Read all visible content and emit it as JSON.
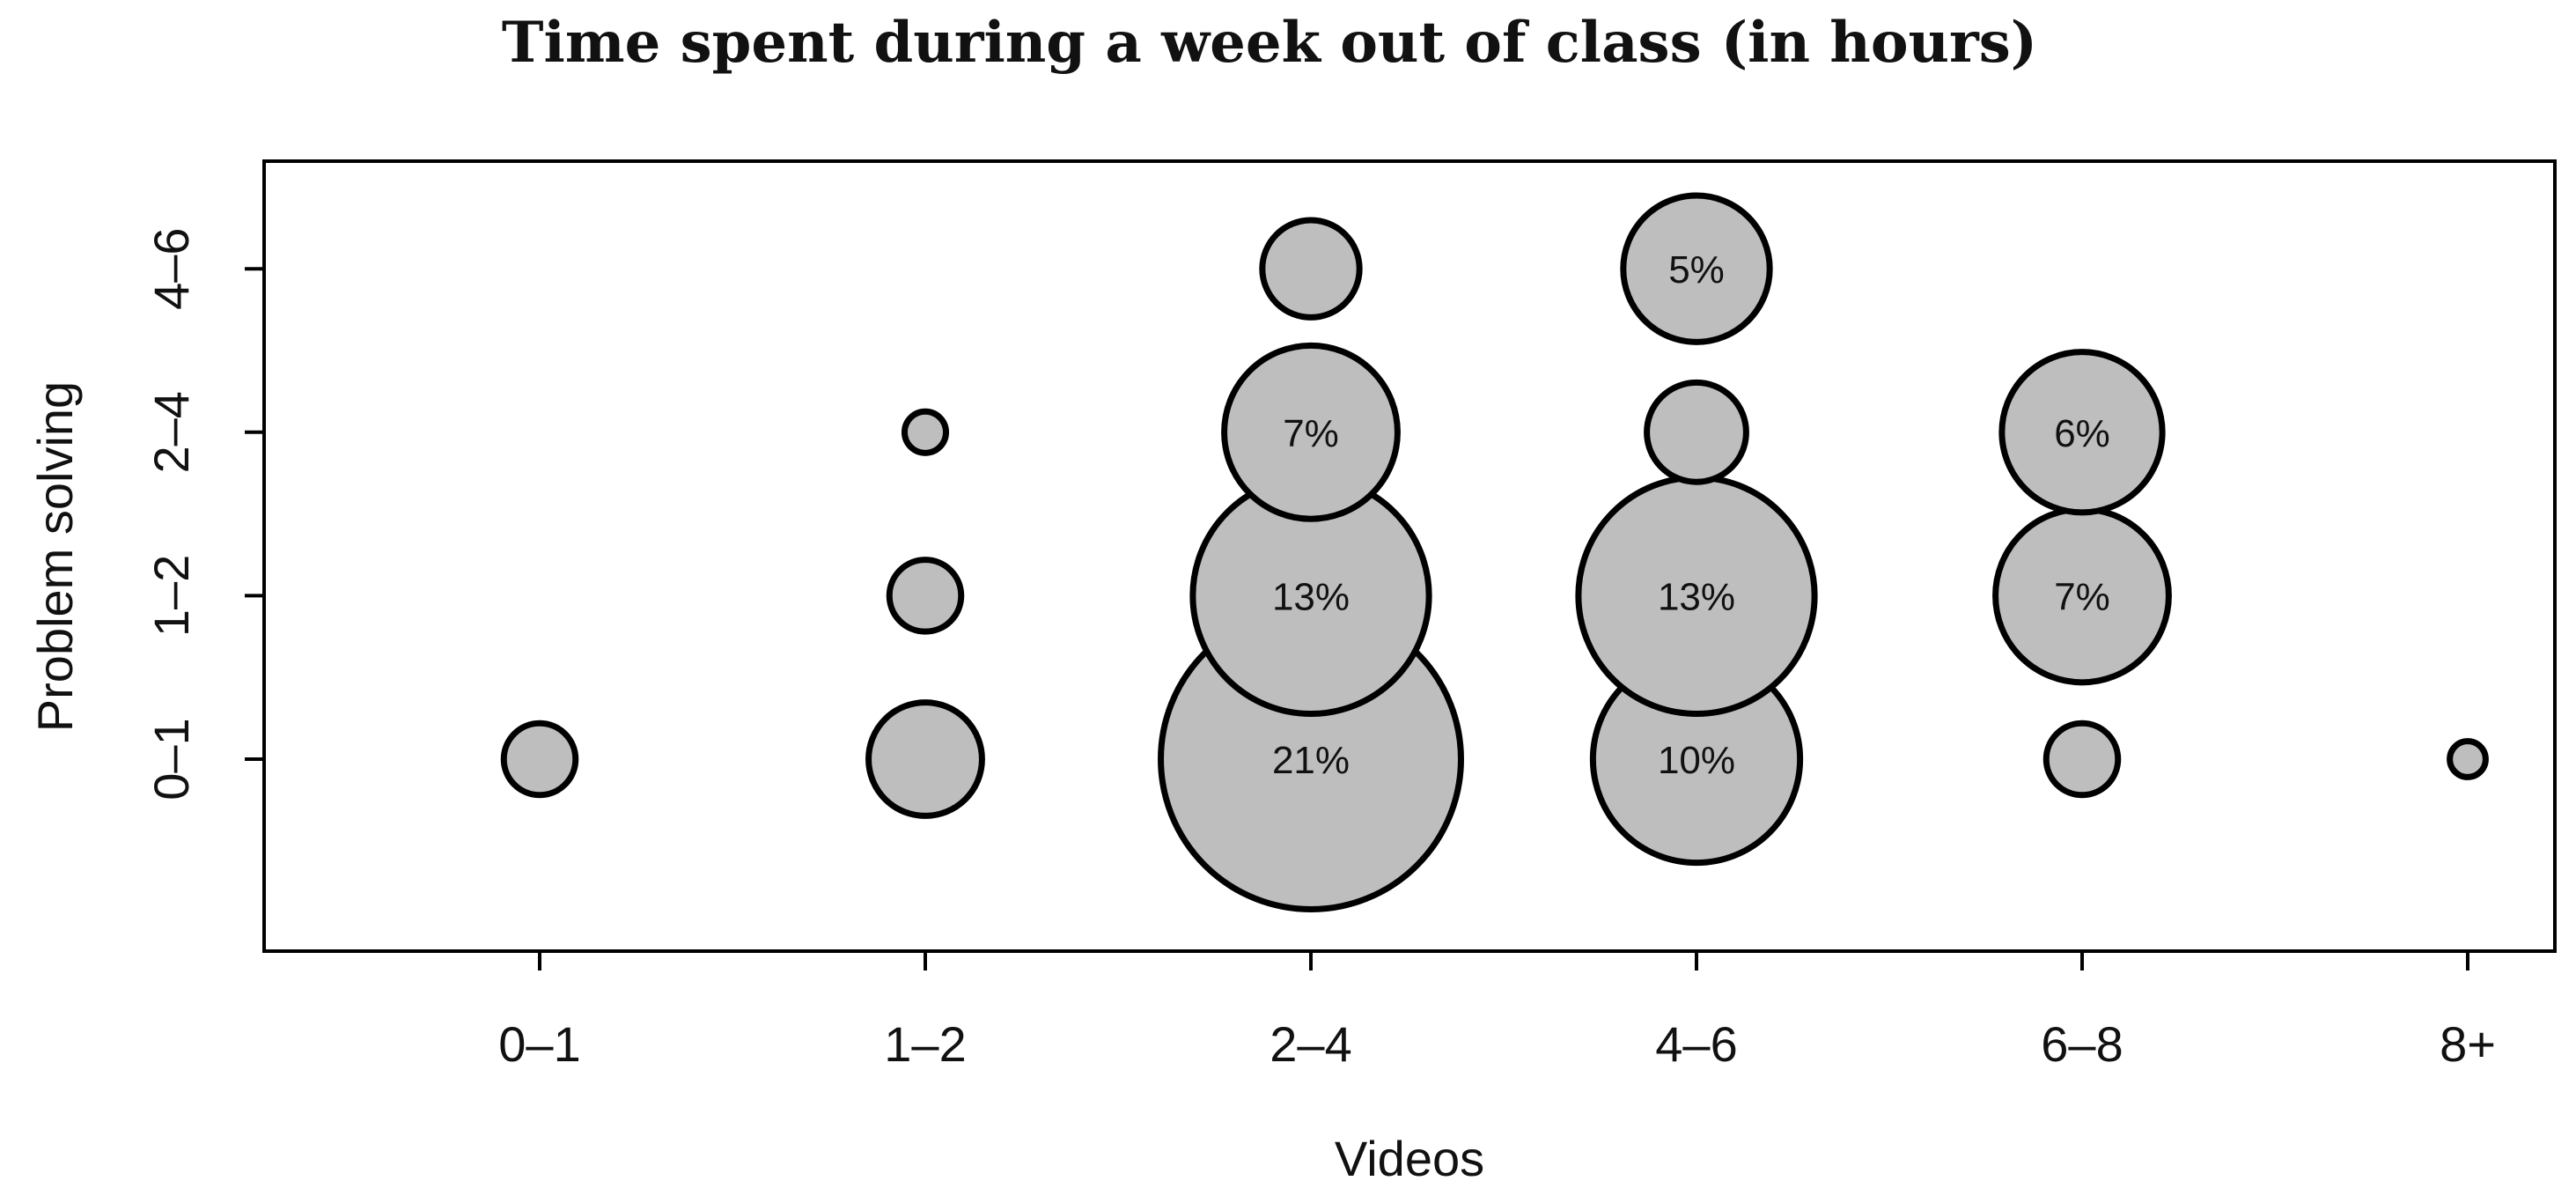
{
  "chart_data": {
    "type": "scatter",
    "title": "Time spent during a week out of class (in hours)",
    "xlabel": "Videos",
    "ylabel": "Problem solving",
    "x_categories": [
      "0–1",
      "1–2",
      "2–4",
      "4–6",
      "6–8",
      "8+"
    ],
    "y_categories": [
      "0–1",
      "1–2",
      "2–4",
      "4–6"
    ],
    "grid": false,
    "bubble_color": "#bebebe",
    "points": [
      {
        "x": "0–1",
        "y": "0–1",
        "percent": 1.2,
        "label": ""
      },
      {
        "x": "1–2",
        "y": "0–1",
        "percent": 3,
        "label": ""
      },
      {
        "x": "1–2",
        "y": "1–2",
        "percent": 1.2,
        "label": ""
      },
      {
        "x": "1–2",
        "y": "2–4",
        "percent": 0.4,
        "label": ""
      },
      {
        "x": "2–4",
        "y": "0–1",
        "percent": 21,
        "label": "21%"
      },
      {
        "x": "2–4",
        "y": "1–2",
        "percent": 13,
        "label": "13%"
      },
      {
        "x": "2–4",
        "y": "2–4",
        "percent": 7,
        "label": "7%"
      },
      {
        "x": "2–4",
        "y": "4–6",
        "percent": 2.2,
        "label": ""
      },
      {
        "x": "4–6",
        "y": "0–1",
        "percent": 10,
        "label": "10%"
      },
      {
        "x": "4–6",
        "y": "1–2",
        "percent": 13,
        "label": "13%"
      },
      {
        "x": "4–6",
        "y": "2–4",
        "percent": 2.3,
        "label": ""
      },
      {
        "x": "4–6",
        "y": "4–6",
        "percent": 5,
        "label": "5%"
      },
      {
        "x": "6–8",
        "y": "0–1",
        "percent": 1.2,
        "label": ""
      },
      {
        "x": "6–8",
        "y": "1–2",
        "percent": 7,
        "label": "7%"
      },
      {
        "x": "6–8",
        "y": "2–4",
        "percent": 6,
        "label": "6%"
      },
      {
        "x": "8+",
        "y": "0–1",
        "percent": 0.3,
        "label": ""
      }
    ]
  }
}
